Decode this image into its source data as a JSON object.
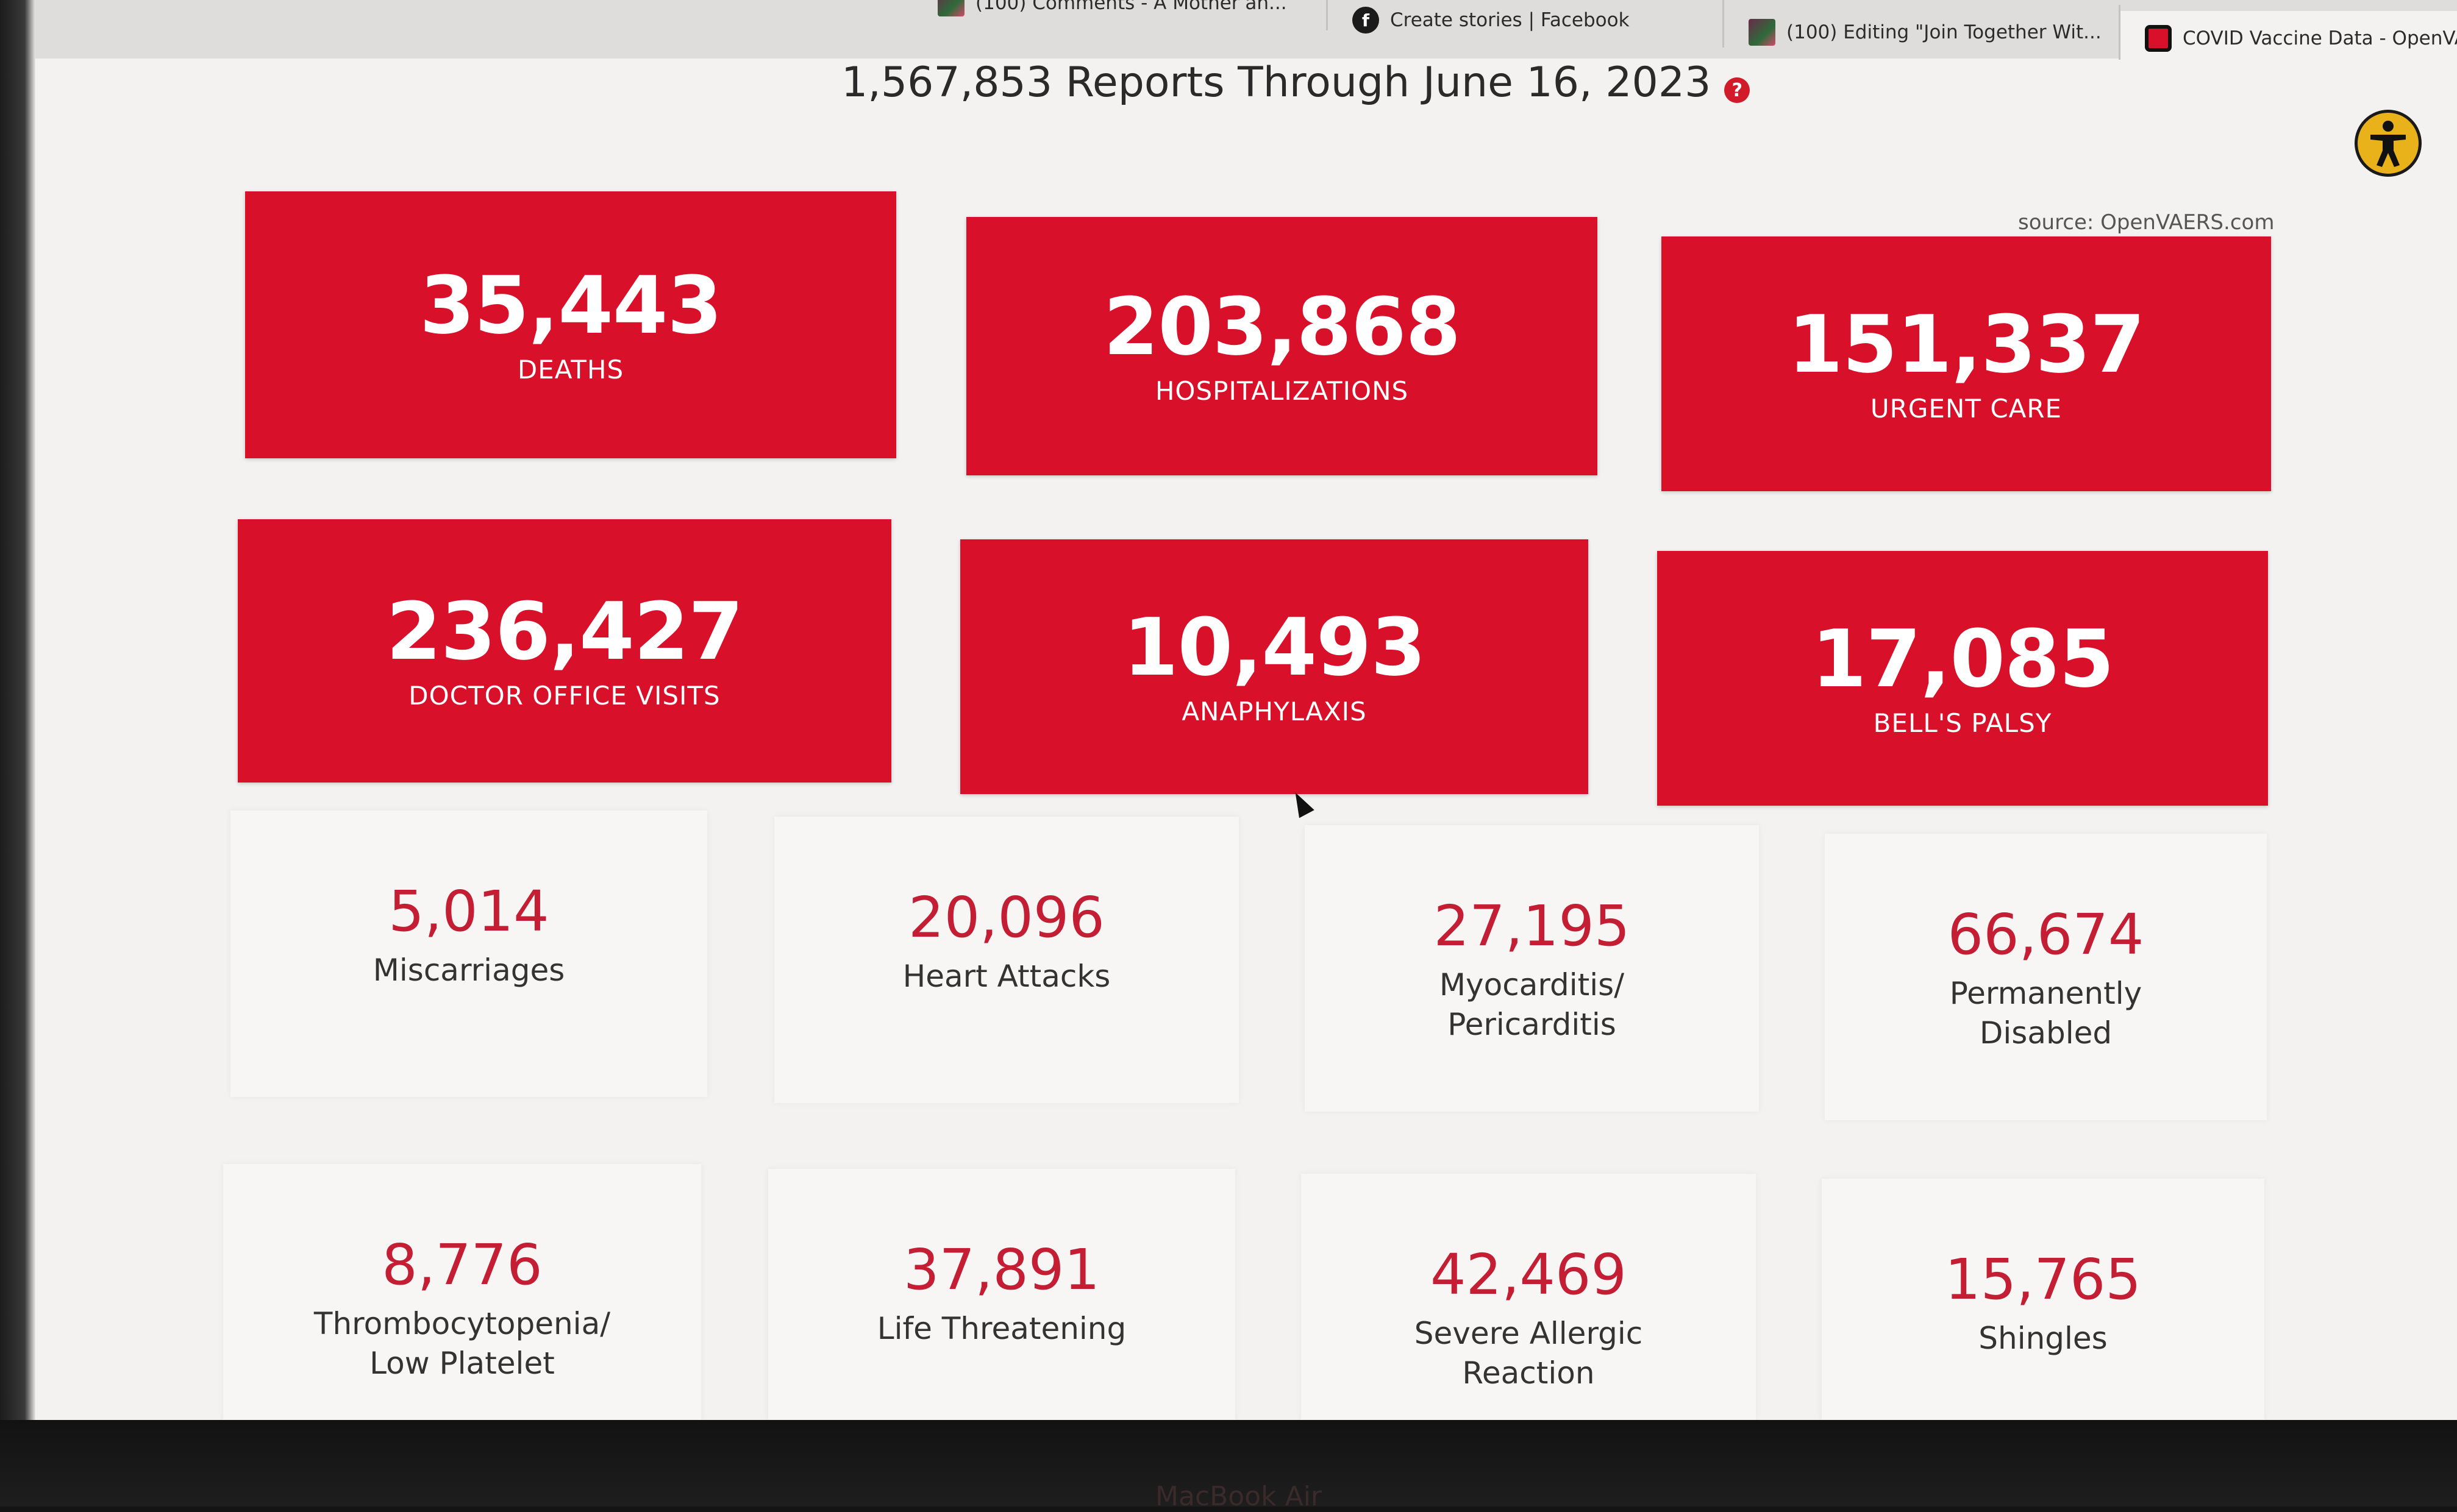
{
  "browser": {
    "tabs": [
      {
        "label": "(100) Comments - A Mother an...",
        "icon": "image-favicon"
      },
      {
        "label": "Create stories | Facebook",
        "icon": "facebook-icon"
      },
      {
        "label": "(100) Editing \"Join Together Wit...",
        "icon": "image-favicon"
      },
      {
        "label": "COVID Vaccine Data - OpenVA...",
        "icon": "openvaers-favicon"
      }
    ]
  },
  "header": {
    "title": "1,567,853 Reports Through June 16, 2023",
    "help_icon": "?"
  },
  "source_note": "source: OpenVAERS.com",
  "primary_stats": [
    {
      "value": "35,443",
      "label": "DEATHS"
    },
    {
      "value": "203,868",
      "label": "HOSPITALIZATIONS"
    },
    {
      "value": "151,337",
      "label": "URGENT CARE"
    },
    {
      "value": "236,427",
      "label": "DOCTOR OFFICE VISITS"
    },
    {
      "value": "10,493",
      "label": "ANAPHYLAXIS"
    },
    {
      "value": "17,085",
      "label": "BELL'S PALSY"
    }
  ],
  "secondary_stats": [
    {
      "value": "5,014",
      "label": "Miscarriages"
    },
    {
      "value": "20,096",
      "label": "Heart Attacks"
    },
    {
      "value": "27,195",
      "label": "Myocarditis/\nPericarditis"
    },
    {
      "value": "66,674",
      "label": "Permanently\nDisabled"
    },
    {
      "value": "8,776",
      "label": "Thrombocytopenia/\nLow Platelet"
    },
    {
      "value": "37,891",
      "label": "Life Threatening"
    },
    {
      "value": "42,469",
      "label": "Severe Allergic\nReaction"
    },
    {
      "value": "15,765",
      "label": "Shingles"
    }
  ],
  "device_label": "MacBook Air",
  "colors": {
    "accent_red": "#d9102a",
    "number_red": "#c41e34",
    "accessibility_yellow": "#e9b21a"
  }
}
